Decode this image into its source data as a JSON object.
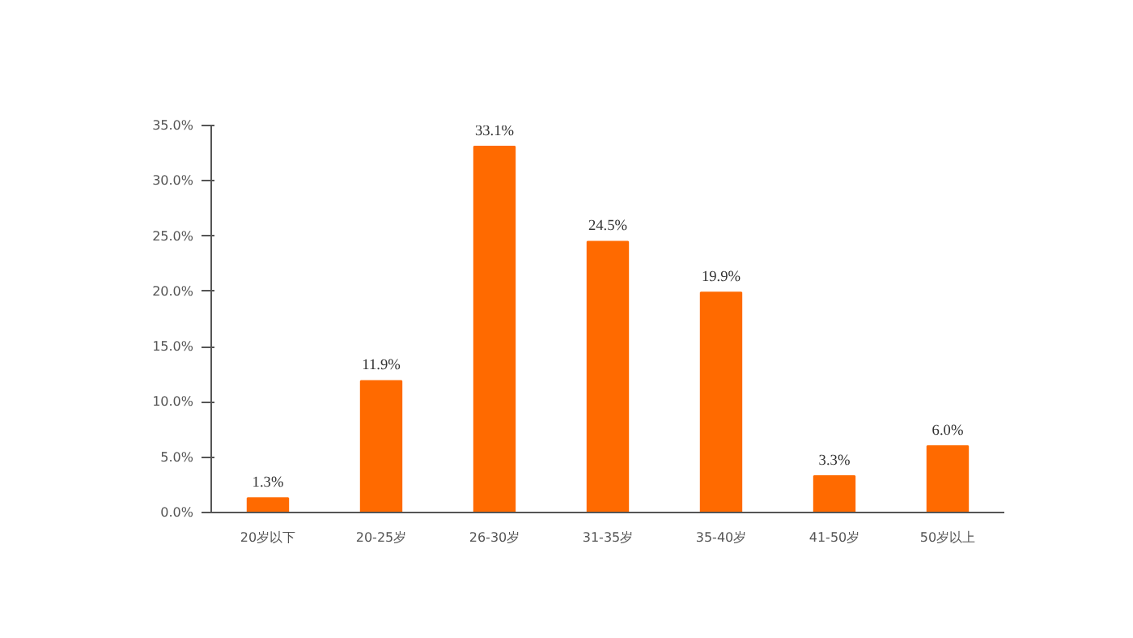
{
  "chart_data": {
    "type": "bar",
    "categories": [
      "20岁以下",
      "20-25岁",
      "26-30岁",
      "31-35岁",
      "35-40岁",
      "41-50岁",
      "50岁以上"
    ],
    "values": [
      1.3,
      11.9,
      33.1,
      24.5,
      19.9,
      3.3,
      6.0
    ],
    "value_labels": [
      "1.3%",
      "11.9%",
      "33.1%",
      "24.5%",
      "19.9%",
      "3.3%",
      "6.0%"
    ],
    "color": "#ff6a00",
    "ylim": [
      0,
      35
    ],
    "yticks": [
      {
        "value": 0,
        "label": "0.0%"
      },
      {
        "value": 5,
        "label": "5.0%"
      },
      {
        "value": 10,
        "label": "10.0%"
      },
      {
        "value": 15,
        "label": "15.0%"
      },
      {
        "value": 20,
        "label": "20.0%"
      },
      {
        "value": 25,
        "label": "25.0%"
      },
      {
        "value": 30,
        "label": "30.0%"
      },
      {
        "value": 35,
        "label": "35.0%"
      }
    ],
    "grid": false
  }
}
